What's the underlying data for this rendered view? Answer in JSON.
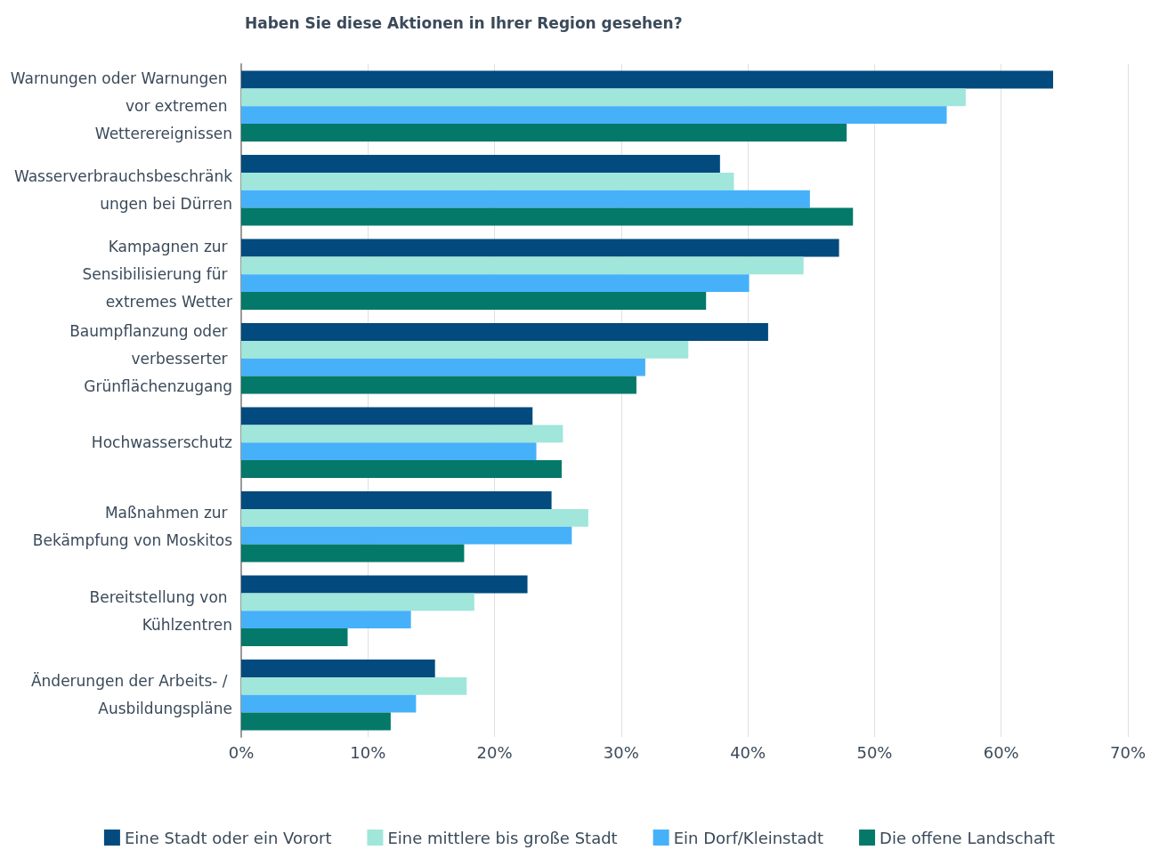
{
  "chart_data": {
    "type": "bar",
    "orientation": "horizontal",
    "title": "Haben Sie diese Aktionen in Ihrer Region gesehen?",
    "categories": [
      "Warnungen oder Warnungen vor extremen Wetterereignissen",
      "Wasserverbrauchsbeschränkungen bei Dürren",
      "Kampagnen zur Sensibilisierung für extremes Wetter",
      "Baumpflanzung oder verbesserter Grünflächenzugang",
      "Hochwasserschutz",
      "Maßnahmen zur Bekämpfung von Moskitos",
      "Bereitstellung von Kühlzentren",
      "Änderungen der Arbeits- / Ausbildungspläne"
    ],
    "series": [
      {
        "name": "Eine Stadt oder ein Vorort",
        "color": "#034a7e",
        "values": [
          64.1,
          37.8,
          47.2,
          41.6,
          23.0,
          24.5,
          22.6,
          15.3
        ]
      },
      {
        "name": "Eine mittlere bis große Stadt",
        "color": "#a0e6da",
        "values": [
          57.2,
          38.9,
          44.4,
          35.3,
          25.4,
          27.4,
          18.4,
          17.8
        ]
      },
      {
        "name": "Ein Dorf/Kleinstadt",
        "color": "#46b1f9",
        "values": [
          55.7,
          44.9,
          40.1,
          31.9,
          23.3,
          26.1,
          13.4,
          13.8
        ]
      },
      {
        "name": "Die offene Landschaft",
        "color": "#04796a",
        "values": [
          47.8,
          48.3,
          36.7,
          31.2,
          25.3,
          17.6,
          8.4,
          11.8
        ]
      }
    ],
    "xlim": [
      0,
      70
    ],
    "xticks": [
      {
        "value": 0,
        "label": "0%"
      },
      {
        "value": 10,
        "label": "10%"
      },
      {
        "value": 20,
        "label": "20%"
      },
      {
        "value": 30,
        "label": "30%"
      },
      {
        "value": 40,
        "label": "40%"
      },
      {
        "value": 50,
        "label": "50%"
      },
      {
        "value": 60,
        "label": "60%"
      },
      {
        "value": 70,
        "label": "70%"
      }
    ],
    "grid": "x",
    "legend": "bottom"
  }
}
